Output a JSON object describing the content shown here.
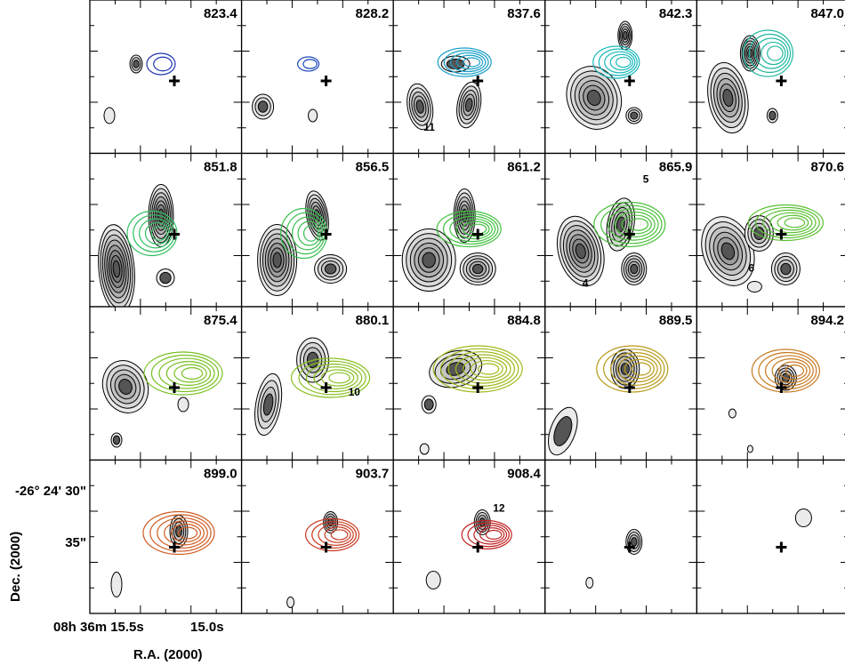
{
  "chart_data": {
    "type": "channel-map",
    "xlabel": "R.A. (2000)",
    "ylabel": "Dec. (2000)",
    "x_tick_labels": [
      "08h 36m 15.5s",
      "15.0s"
    ],
    "y_tick_labels": [
      "-26° 24' 30\"",
      "35\""
    ],
    "layout": {
      "rows": 4,
      "cols": 5
    },
    "velocity_colors": {
      "823.4": "#1a33b0",
      "828.2": "#1a48b8",
      "837.6": "#1aa0c8",
      "842.3": "#18b8b8",
      "847.0": "#20b8a0",
      "851.8": "#30c060",
      "856.5": "#38c050",
      "861.2": "#40c040",
      "865.9": "#48c038",
      "870.6": "#58c030",
      "875.4": "#78c020",
      "880.1": "#88c020",
      "884.8": "#a0b818",
      "889.5": "#b89a18",
      "894.2": "#c87a20",
      "899.0": "#d05a20",
      "903.7": "#c83a20",
      "908.4": "#c02020"
    },
    "panels": [
      {
        "velocity": "823.4",
        "labels": []
      },
      {
        "velocity": "828.2",
        "labels": []
      },
      {
        "velocity": "837.6",
        "labels": [
          "11"
        ]
      },
      {
        "velocity": "842.3",
        "labels": []
      },
      {
        "velocity": "847.0",
        "labels": []
      },
      {
        "velocity": "851.8",
        "labels": []
      },
      {
        "velocity": "856.5",
        "labels": []
      },
      {
        "velocity": "861.2",
        "labels": []
      },
      {
        "velocity": "865.9",
        "labels": [
          "5",
          "4"
        ]
      },
      {
        "velocity": "870.6",
        "labels": [
          "6"
        ]
      },
      {
        "velocity": "875.4",
        "labels": []
      },
      {
        "velocity": "880.1",
        "labels": [
          "10"
        ]
      },
      {
        "velocity": "884.8",
        "labels": []
      },
      {
        "velocity": "889.5",
        "labels": []
      },
      {
        "velocity": "894.2",
        "labels": []
      },
      {
        "velocity": "899.0",
        "labels": []
      },
      {
        "velocity": "903.7",
        "labels": []
      },
      {
        "velocity": "908.4",
        "labels": [
          "12"
        ]
      },
      {
        "velocity": "",
        "labels": []
      },
      {
        "velocity": "",
        "labels": []
      }
    ]
  }
}
